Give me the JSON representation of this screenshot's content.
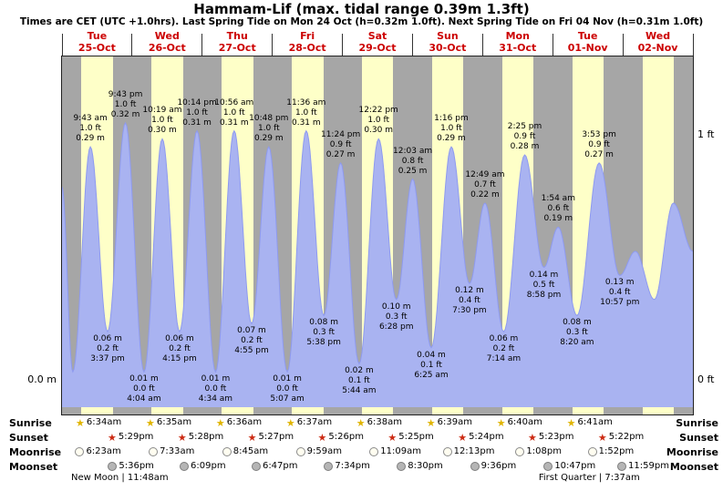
{
  "header": {
    "title": "Hammam-Lif (max. tidal range 0.39m 1.3ft)",
    "subtitle": "Times are CET (UTC +1.0hrs). Last Spring Tide on Mon 24 Oct (h=0.32m 1.0ft). Next Spring Tide on Fri 04 Nov (h=0.31m 1.0ft)"
  },
  "axis": {
    "left_zero": "0.0 m",
    "right_one_ft": "1 ft",
    "right_zero_ft": "0 ft"
  },
  "days": [
    {
      "name": "Tue",
      "date": "25-Oct"
    },
    {
      "name": "Wed",
      "date": "26-Oct"
    },
    {
      "name": "Thu",
      "date": "27-Oct"
    },
    {
      "name": "Fri",
      "date": "28-Oct"
    },
    {
      "name": "Sat",
      "date": "29-Oct"
    },
    {
      "name": "Sun",
      "date": "30-Oct"
    },
    {
      "name": "Mon",
      "date": "31-Oct"
    },
    {
      "name": "Tue",
      "date": "01-Nov"
    },
    {
      "name": "Wed",
      "date": "02-Nov"
    }
  ],
  "chart_data": {
    "type": "area",
    "title": "Hammam-Lif tide height curve",
    "x_unit": "hours since Tue 25-Oct 00:00",
    "x_range": [
      0,
      216
    ],
    "y_unit": "m",
    "y_range": [
      0,
      0.35
    ],
    "grid": false,
    "tide_events": [
      {
        "t": 9.72,
        "h": 0.29,
        "kind": "high",
        "lines": [
          "9:43 am",
          "1.0 ft",
          "0.29 m"
        ]
      },
      {
        "t": 15.62,
        "h": 0.06,
        "kind": "low",
        "lines": [
          "0.06 m",
          "0.2 ft",
          "3:37 pm"
        ]
      },
      {
        "t": 21.72,
        "h": 0.32,
        "kind": "high",
        "lines": [
          "9:43 pm",
          "1.0 ft",
          "0.32 m"
        ]
      },
      {
        "t": 28.07,
        "h": 0.01,
        "kind": "low",
        "lines": [
          "0.01 m",
          "0.0 ft",
          "4:04 am"
        ]
      },
      {
        "t": 34.32,
        "h": 0.3,
        "kind": "high",
        "lines": [
          "10:19 am",
          "1.0 ft",
          "0.30 m"
        ]
      },
      {
        "t": 40.25,
        "h": 0.06,
        "kind": "low",
        "lines": [
          "0.06 m",
          "0.2 ft",
          "4:15 pm"
        ]
      },
      {
        "t": 46.23,
        "h": 0.31,
        "kind": "high",
        "lines": [
          "10:14 pm",
          "1.0 ft",
          "0.31 m"
        ]
      },
      {
        "t": 52.57,
        "h": 0.01,
        "kind": "low",
        "lines": [
          "0.01 m",
          "0.0 ft",
          "4:34 am"
        ]
      },
      {
        "t": 58.93,
        "h": 0.31,
        "kind": "high",
        "lines": [
          "10:56 am",
          "1.0 ft",
          "0.31 m"
        ]
      },
      {
        "t": 64.92,
        "h": 0.07,
        "kind": "low",
        "lines": [
          "0.07 m",
          "0.2 ft",
          "4:55 pm"
        ]
      },
      {
        "t": 70.8,
        "h": 0.29,
        "kind": "high",
        "lines": [
          "10:48 pm",
          "1.0 ft",
          "0.29 m"
        ]
      },
      {
        "t": 77.12,
        "h": 0.01,
        "kind": "low",
        "lines": [
          "0.01 m",
          "0.0 ft",
          "5:07 am"
        ]
      },
      {
        "t": 83.6,
        "h": 0.31,
        "kind": "high",
        "lines": [
          "11:36 am",
          "1.0 ft",
          "0.31 m"
        ]
      },
      {
        "t": 89.63,
        "h": 0.08,
        "kind": "low",
        "lines": [
          "0.08 m",
          "0.3 ft",
          "5:38 pm"
        ]
      },
      {
        "t": 95.4,
        "h": 0.27,
        "kind": "high",
        "lines": [
          "11:24 pm",
          "0.9 ft",
          "0.27 m"
        ]
      },
      {
        "t": 101.73,
        "h": 0.02,
        "kind": "low",
        "lines": [
          "0.02 m",
          "0.1 ft",
          "5:44 am"
        ]
      },
      {
        "t": 108.37,
        "h": 0.3,
        "kind": "high",
        "lines": [
          "12:22 pm",
          "1.0 ft",
          "0.30 m"
        ]
      },
      {
        "t": 114.47,
        "h": 0.1,
        "kind": "low",
        "lines": [
          "0.10 m",
          "0.3 ft",
          "6:28 pm"
        ]
      },
      {
        "t": 120.05,
        "h": 0.25,
        "kind": "high",
        "lines": [
          "12:03 am",
          "0.8 ft",
          "0.25 m"
        ]
      },
      {
        "t": 126.42,
        "h": 0.04,
        "kind": "low",
        "lines": [
          "0.04 m",
          "0.1 ft",
          "6:25 am"
        ]
      },
      {
        "t": 133.27,
        "h": 0.29,
        "kind": "high",
        "lines": [
          "1:16 pm",
          "1.0 ft",
          "0.29 m"
        ]
      },
      {
        "t": 139.5,
        "h": 0.12,
        "kind": "low",
        "lines": [
          "0.12 m",
          "0.4 ft",
          "7:30 pm"
        ]
      },
      {
        "t": 144.82,
        "h": 0.22,
        "kind": "high",
        "lines": [
          "12:49 am",
          "0.7 ft",
          "0.22 m"
        ]
      },
      {
        "t": 151.23,
        "h": 0.06,
        "kind": "low",
        "lines": [
          "0.06 m",
          "0.2 ft",
          "7:14 am"
        ]
      },
      {
        "t": 158.42,
        "h": 0.28,
        "kind": "high",
        "lines": [
          "2:25 pm",
          "0.9 ft",
          "0.28 m"
        ]
      },
      {
        "t": 164.97,
        "h": 0.14,
        "kind": "low",
        "lines": [
          "0.14 m",
          "0.5 ft",
          "8:58 pm"
        ]
      },
      {
        "t": 169.9,
        "h": 0.19,
        "kind": "high",
        "lines": [
          "1:54 am",
          "0.6 ft",
          "0.19 m"
        ]
      },
      {
        "t": 176.33,
        "h": 0.08,
        "kind": "low",
        "lines": [
          "0.08 m",
          "0.3 ft",
          "8:20 am"
        ]
      },
      {
        "t": 183.88,
        "h": 0.27,
        "kind": "high",
        "lines": [
          "3:53 pm",
          "0.9 ft",
          "0.27 m"
        ]
      },
      {
        "t": 190.95,
        "h": 0.13,
        "kind": "low",
        "lines": [
          "0.13 m",
          "0.4 ft",
          "10:57 pm"
        ]
      }
    ],
    "shape_points": [
      {
        "t": 0.0,
        "h": 0.24
      },
      {
        "t": 3.7,
        "h": 0.01
      },
      {
        "t": 196.3,
        "h": 0.16
      },
      {
        "t": 202.8,
        "h": 0.1
      },
      {
        "t": 209.3,
        "h": 0.22
      },
      {
        "t": 216.0,
        "h": 0.16
      }
    ],
    "colors": {
      "fill": "#a9b3f1",
      "line": "#8e9af0",
      "day_band": "#feffc8",
      "night_band": "#a6a6a6",
      "day_label_red": "#cc0000",
      "sunrise_star": "#e0b400",
      "sunset_star": "#cc2a12"
    }
  },
  "astro": {
    "rows": [
      {
        "label": "Sunrise",
        "icon": "sunrise-star",
        "times": [
          "6:34am",
          "6:35am",
          "6:36am",
          "6:37am",
          "6:38am",
          "6:39am",
          "6:40am",
          "6:41am"
        ]
      },
      {
        "label": "Sunset",
        "icon": "sunset-star",
        "times": [
          "5:29pm",
          "5:28pm",
          "5:27pm",
          "5:26pm",
          "5:25pm",
          "5:24pm",
          "5:23pm",
          "5:22pm"
        ]
      },
      {
        "label": "Moonrise",
        "icon": "moonrise-circle",
        "times": [
          "6:23am",
          "7:33am",
          "8:45am",
          "9:59am",
          "11:09am",
          "12:13pm",
          "1:08pm",
          "1:52pm"
        ]
      },
      {
        "label": "Moonset",
        "icon": "moonset-circle",
        "times": [
          "5:36pm",
          "6:09pm",
          "6:47pm",
          "7:34pm",
          "8:30pm",
          "9:36pm",
          "10:47pm",
          "11:59pm"
        ]
      }
    ],
    "moon_phases": [
      {
        "label": "New Moon | 11:48am",
        "day": 0.13
      },
      {
        "label": "First Quarter | 7:37am",
        "day": 6.8
      }
    ]
  }
}
